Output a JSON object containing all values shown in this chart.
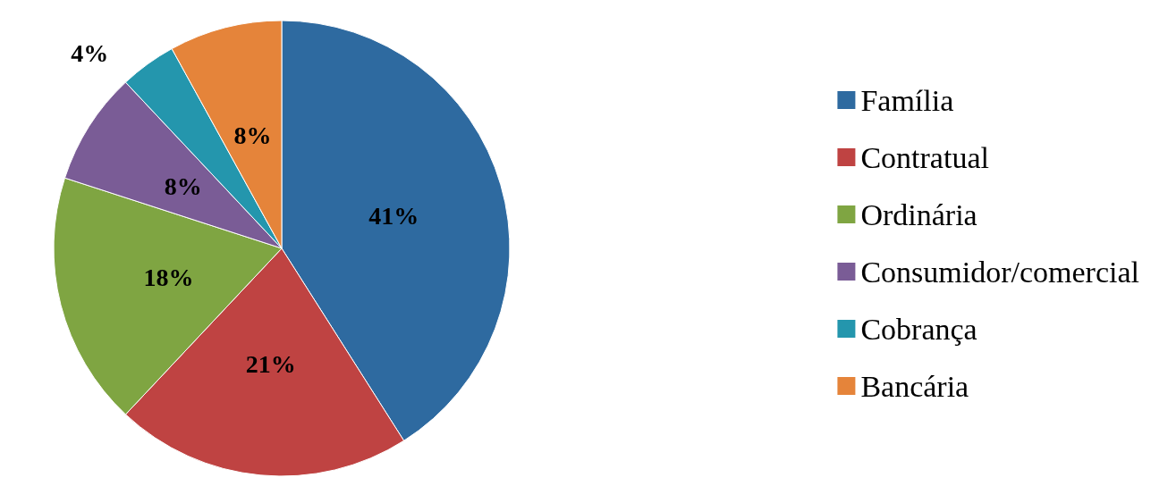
{
  "chart_data": {
    "type": "pie",
    "categories": [
      "Família",
      "Contratual",
      "Ordinária",
      "Consumidor/comercial",
      "Cobrança",
      "Bancária"
    ],
    "values": [
      41,
      21,
      18,
      8,
      4,
      8
    ],
    "colors": [
      "#2e6aa0",
      "#bf4342",
      "#7fa542",
      "#7a5c96",
      "#2496ad",
      "#e5843a"
    ],
    "value_labels": [
      "41%",
      "21%",
      "18%",
      "8%",
      "4%",
      "8%"
    ],
    "legend": "right"
  }
}
